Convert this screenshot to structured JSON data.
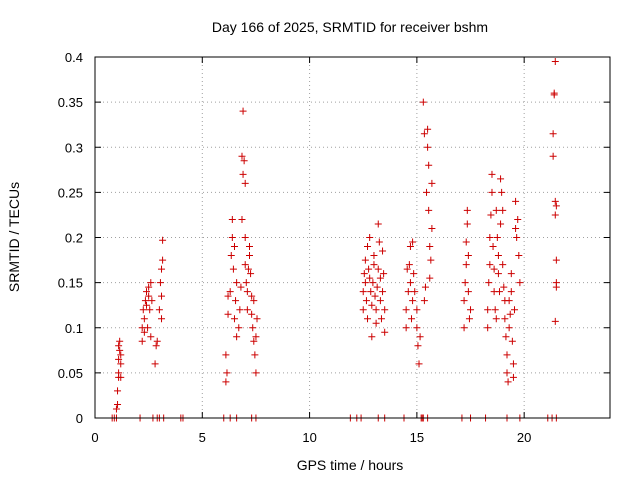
{
  "chart_data": {
    "type": "scatter",
    "title": "Day 166 of 2025, SRMTID for receiver bshm",
    "xlabel": "GPS time / hours",
    "ylabel": "SRMTID / TECUs",
    "xlim": [
      0,
      24
    ],
    "ylim": [
      0,
      0.4
    ],
    "grid": true,
    "xticks": [
      0,
      5,
      10,
      15,
      20
    ],
    "xtick_labels": [
      "0",
      "5",
      "10",
      "15",
      "20"
    ],
    "yticks": [
      0,
      0.05,
      0.1,
      0.15,
      0.2,
      0.25,
      0.3,
      0.35,
      0.4
    ],
    "ytick_labels": [
      "0",
      "0.05",
      "0.1",
      "0.15",
      "0.2",
      "0.25",
      "0.3",
      "0.35",
      "0.4"
    ],
    "marker": "+",
    "color": "#cc0000",
    "series": [
      {
        "name": "SRMTID",
        "points": [
          [
            0.8,
            0
          ],
          [
            0.9,
            0
          ],
          [
            1.0,
            0
          ],
          [
            1.0,
            0.01
          ],
          [
            1.05,
            0.015
          ],
          [
            1.05,
            0.03
          ],
          [
            1.1,
            0.045
          ],
          [
            1.1,
            0.05
          ],
          [
            1.1,
            0.065
          ],
          [
            1.1,
            0.08
          ],
          [
            1.15,
            0.075
          ],
          [
            1.15,
            0.085
          ],
          [
            1.2,
            0.045
          ],
          [
            1.2,
            0.07
          ],
          [
            1.2,
            0.06
          ],
          [
            2.1,
            0
          ],
          [
            2.2,
            0.085
          ],
          [
            2.2,
            0.1
          ],
          [
            2.25,
            0.12
          ],
          [
            2.3,
            0.11
          ],
          [
            2.3,
            0.095
          ],
          [
            2.35,
            0.13
          ],
          [
            2.4,
            0.125
          ],
          [
            2.4,
            0.14
          ],
          [
            2.45,
            0.1
          ],
          [
            2.5,
            0.135
          ],
          [
            2.5,
            0.145
          ],
          [
            2.55,
            0.12
          ],
          [
            2.6,
            0.15
          ],
          [
            2.6,
            0.09
          ],
          [
            2.65,
            0.13
          ],
          [
            2.7,
            0
          ],
          [
            2.8,
            0.06
          ],
          [
            2.85,
            0.08
          ],
          [
            2.9,
            0
          ],
          [
            2.9,
            0.085
          ],
          [
            3.0,
            0
          ],
          [
            3.0,
            0.12
          ],
          [
            3.05,
            0.15
          ],
          [
            3.1,
            0.135
          ],
          [
            3.1,
            0.165
          ],
          [
            3.15,
            0.175
          ],
          [
            3.15,
            0.197
          ],
          [
            3.1,
            0.11
          ],
          [
            3.2,
            0
          ],
          [
            4.0,
            0
          ],
          [
            4.1,
            0
          ],
          [
            6.0,
            0
          ],
          [
            6.1,
            0.04
          ],
          [
            6.1,
            0.07
          ],
          [
            6.15,
            0.05
          ],
          [
            6.2,
            0.115
          ],
          [
            6.2,
            0.135
          ],
          [
            6.3,
            0.14
          ],
          [
            6.35,
            0.18
          ],
          [
            6.4,
            0.2
          ],
          [
            6.4,
            0.22
          ],
          [
            6.45,
            0.165
          ],
          [
            6.5,
            0.19
          ],
          [
            6.5,
            0.11
          ],
          [
            6.55,
            0.13
          ],
          [
            6.6,
            0.15
          ],
          [
            6.6,
            0.09
          ],
          [
            6.7,
            0.1
          ],
          [
            6.75,
            0.12
          ],
          [
            6.8,
            0.145
          ],
          [
            6.85,
            0.29
          ],
          [
            6.85,
            0.22
          ],
          [
            6.9,
            0.34
          ],
          [
            6.9,
            0.27
          ],
          [
            6.95,
            0.285
          ],
          [
            7.0,
            0.26
          ],
          [
            7.0,
            0.2
          ],
          [
            7.0,
            0.17
          ],
          [
            7.05,
            0.15
          ],
          [
            7.1,
            0.14
          ],
          [
            7.1,
            0.12
          ],
          [
            7.15,
            0.165
          ],
          [
            7.2,
            0.18
          ],
          [
            7.2,
            0.19
          ],
          [
            7.25,
            0.16
          ],
          [
            7.3,
            0.135
          ],
          [
            7.3,
            0.115
          ],
          [
            7.35,
            0.1
          ],
          [
            7.4,
            0.13
          ],
          [
            7.4,
            0.085
          ],
          [
            7.45,
            0.07
          ],
          [
            7.5,
            0.05
          ],
          [
            7.5,
            0.09
          ],
          [
            7.55,
            0.11
          ],
          [
            6.3,
            0
          ],
          [
            6.6,
            0
          ],
          [
            7.3,
            0
          ],
          [
            7.5,
            0
          ],
          [
            11.9,
            0
          ],
          [
            12.2,
            0
          ],
          [
            12.4,
            0
          ],
          [
            12.5,
            0.12
          ],
          [
            12.5,
            0.14
          ],
          [
            12.55,
            0.16
          ],
          [
            12.6,
            0.175
          ],
          [
            12.6,
            0.15
          ],
          [
            12.65,
            0.13
          ],
          [
            12.7,
            0.11
          ],
          [
            12.7,
            0.19
          ],
          [
            12.75,
            0.165
          ],
          [
            12.8,
            0.155
          ],
          [
            12.8,
            0.2
          ],
          [
            12.85,
            0.14
          ],
          [
            12.9,
            0.09
          ],
          [
            12.9,
            0.125
          ],
          [
            12.95,
            0.15
          ],
          [
            13.0,
            0.18
          ],
          [
            13.0,
            0.17
          ],
          [
            13.05,
            0.135
          ],
          [
            13.1,
            0.105
          ],
          [
            13.1,
            0.12
          ],
          [
            13.15,
            0.145
          ],
          [
            13.2,
            0.165
          ],
          [
            13.2,
            0.215
          ],
          [
            13.25,
            0.195
          ],
          [
            13.3,
            0.155
          ],
          [
            13.3,
            0.13
          ],
          [
            13.35,
            0.11
          ],
          [
            13.4,
            0.14
          ],
          [
            13.4,
            0.185
          ],
          [
            13.45,
            0.16
          ],
          [
            13.5,
            0.095
          ],
          [
            13.5,
            0.12
          ],
          [
            13.2,
            0
          ],
          [
            13.5,
            0
          ],
          [
            14.4,
            0
          ],
          [
            14.5,
            0.1
          ],
          [
            14.5,
            0.12
          ],
          [
            14.55,
            0.165
          ],
          [
            14.6,
            0.14
          ],
          [
            14.65,
            0.17
          ],
          [
            14.7,
            0.19
          ],
          [
            14.7,
            0.15
          ],
          [
            14.75,
            0.11
          ],
          [
            14.8,
            0.195
          ],
          [
            14.8,
            0.13
          ],
          [
            14.85,
            0.16
          ],
          [
            14.9,
            0.14
          ],
          [
            15.0,
            0.12
          ],
          [
            15.0,
            0.1
          ],
          [
            15.05,
            0.08
          ],
          [
            15.1,
            0.06
          ],
          [
            15.15,
            0.09
          ],
          [
            15.2,
            0
          ],
          [
            15.25,
            0
          ],
          [
            15.3,
            0.35
          ],
          [
            15.35,
            0.315
          ],
          [
            15.35,
            0.13
          ],
          [
            15.4,
            0.145
          ],
          [
            15.45,
            0.25
          ],
          [
            15.5,
            0.32
          ],
          [
            15.5,
            0.3
          ],
          [
            15.55,
            0.28
          ],
          [
            15.55,
            0.23
          ],
          [
            15.6,
            0.19
          ],
          [
            15.6,
            0.155
          ],
          [
            15.65,
            0.175
          ],
          [
            15.7,
            0.21
          ],
          [
            15.7,
            0.26
          ],
          [
            15.3,
            0
          ],
          [
            15.5,
            0
          ],
          [
            17.1,
            0
          ],
          [
            17.2,
            0.1
          ],
          [
            17.2,
            0.13
          ],
          [
            17.25,
            0.15
          ],
          [
            17.3,
            0.17
          ],
          [
            17.3,
            0.195
          ],
          [
            17.35,
            0.23
          ],
          [
            17.35,
            0.215
          ],
          [
            17.4,
            0.18
          ],
          [
            17.4,
            0.14
          ],
          [
            17.45,
            0.11
          ],
          [
            17.5,
            0.12
          ],
          [
            17.5,
            0
          ],
          [
            18.2,
            0
          ],
          [
            18.3,
            0.1
          ],
          [
            18.3,
            0.12
          ],
          [
            18.35,
            0.15
          ],
          [
            18.4,
            0.17
          ],
          [
            18.4,
            0.2
          ],
          [
            18.45,
            0.225
          ],
          [
            18.5,
            0.27
          ],
          [
            18.5,
            0.25
          ],
          [
            18.55,
            0.19
          ],
          [
            18.6,
            0.165
          ],
          [
            18.6,
            0.14
          ],
          [
            18.65,
            0.12
          ],
          [
            18.7,
            0.11
          ],
          [
            18.7,
            0.23
          ],
          [
            18.75,
            0.2
          ],
          [
            18.8,
            0.18
          ],
          [
            18.8,
            0.16
          ],
          [
            18.85,
            0.14
          ],
          [
            18.9,
            0.215
          ],
          [
            18.9,
            0.265
          ],
          [
            18.95,
            0.25
          ],
          [
            19.0,
            0.23
          ],
          [
            19.0,
            0.17
          ],
          [
            19.05,
            0.145
          ],
          [
            19.1,
            0.13
          ],
          [
            19.1,
            0.11
          ],
          [
            19.15,
            0.09
          ],
          [
            19.2,
            0.05
          ],
          [
            19.2,
            0.07
          ],
          [
            19.25,
            0.04
          ],
          [
            19.3,
            0.1
          ],
          [
            19.3,
            0.13
          ],
          [
            19.35,
            0.115
          ],
          [
            19.4,
            0.16
          ],
          [
            19.4,
            0.14
          ],
          [
            19.45,
            0.085
          ],
          [
            19.5,
            0.06
          ],
          [
            19.5,
            0.045
          ],
          [
            19.55,
            0.12
          ],
          [
            19.6,
            0.24
          ],
          [
            19.6,
            0.21
          ],
          [
            19.65,
            0.2
          ],
          [
            19.7,
            0.22
          ],
          [
            19.75,
            0.18
          ],
          [
            19.8,
            0.15
          ],
          [
            19.8,
            0
          ],
          [
            19.2,
            0
          ],
          [
            21.1,
            0
          ],
          [
            21.3,
            0
          ],
          [
            21.35,
            0.29
          ],
          [
            21.35,
            0.315
          ],
          [
            21.4,
            0.36
          ],
          [
            21.4,
            0.358
          ],
          [
            21.45,
            0.395
          ],
          [
            21.45,
            0.24
          ],
          [
            21.45,
            0.225
          ],
          [
            21.5,
            0.235
          ],
          [
            21.5,
            0.175
          ],
          [
            21.5,
            0.145
          ],
          [
            21.5,
            0.15
          ],
          [
            21.45,
            0.107
          ],
          [
            21.5,
            0
          ]
        ]
      }
    ]
  }
}
